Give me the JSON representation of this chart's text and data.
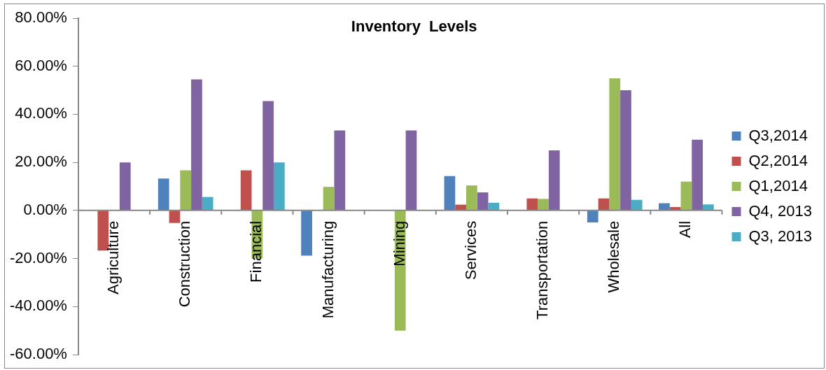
{
  "chart_data": {
    "type": "bar",
    "title": "Inventory  Levels",
    "categories": [
      "Agriculture",
      "Construction",
      "Financial",
      "Manufacturing",
      "Mining",
      "Services",
      "Transportation",
      "Wholesale",
      "All"
    ],
    "series": [
      {
        "name": "Q3,2014",
        "color": "#4f81bd",
        "values": [
          0,
          13.3,
          0,
          -18.8,
          0,
          14.3,
          0,
          -5,
          3
        ]
      },
      {
        "name": "Q2,2014",
        "color": "#c0504d",
        "values": [
          -16.7,
          -5.2,
          16.7,
          0,
          0,
          2.4,
          5,
          5,
          1.4
        ]
      },
      {
        "name": "Q1,2014",
        "color": "#9bbb59",
        "values": [
          0,
          16.7,
          -20,
          9.8,
          -50,
          10.4,
          4.8,
          55,
          12
        ]
      },
      {
        "name": "Q4, 2013",
        "color": "#8064a2",
        "values": [
          20,
          54.5,
          45.5,
          33.3,
          33.3,
          7.5,
          25,
          50,
          29.4
        ]
      },
      {
        "name": "Q3, 2013",
        "color": "#4bacc6",
        "values": [
          0,
          5.6,
          20,
          0,
          0,
          3.2,
          0,
          4.4,
          2.5
        ]
      }
    ],
    "ylim": [
      -60,
      80
    ],
    "yticks": [
      {
        "value": -60,
        "label": "-60.00%"
      },
      {
        "value": -40,
        "label": "-40.00%"
      },
      {
        "value": -20,
        "label": "-20.00%"
      },
      {
        "value": 0,
        "label": "0.00%"
      },
      {
        "value": 20,
        "label": "20.00%"
      },
      {
        "value": 40,
        "label": "40.00%"
      },
      {
        "value": 60,
        "label": "60.00%"
      },
      {
        "value": 80,
        "label": "80.00%"
      }
    ],
    "grid": false,
    "legend": "right"
  }
}
